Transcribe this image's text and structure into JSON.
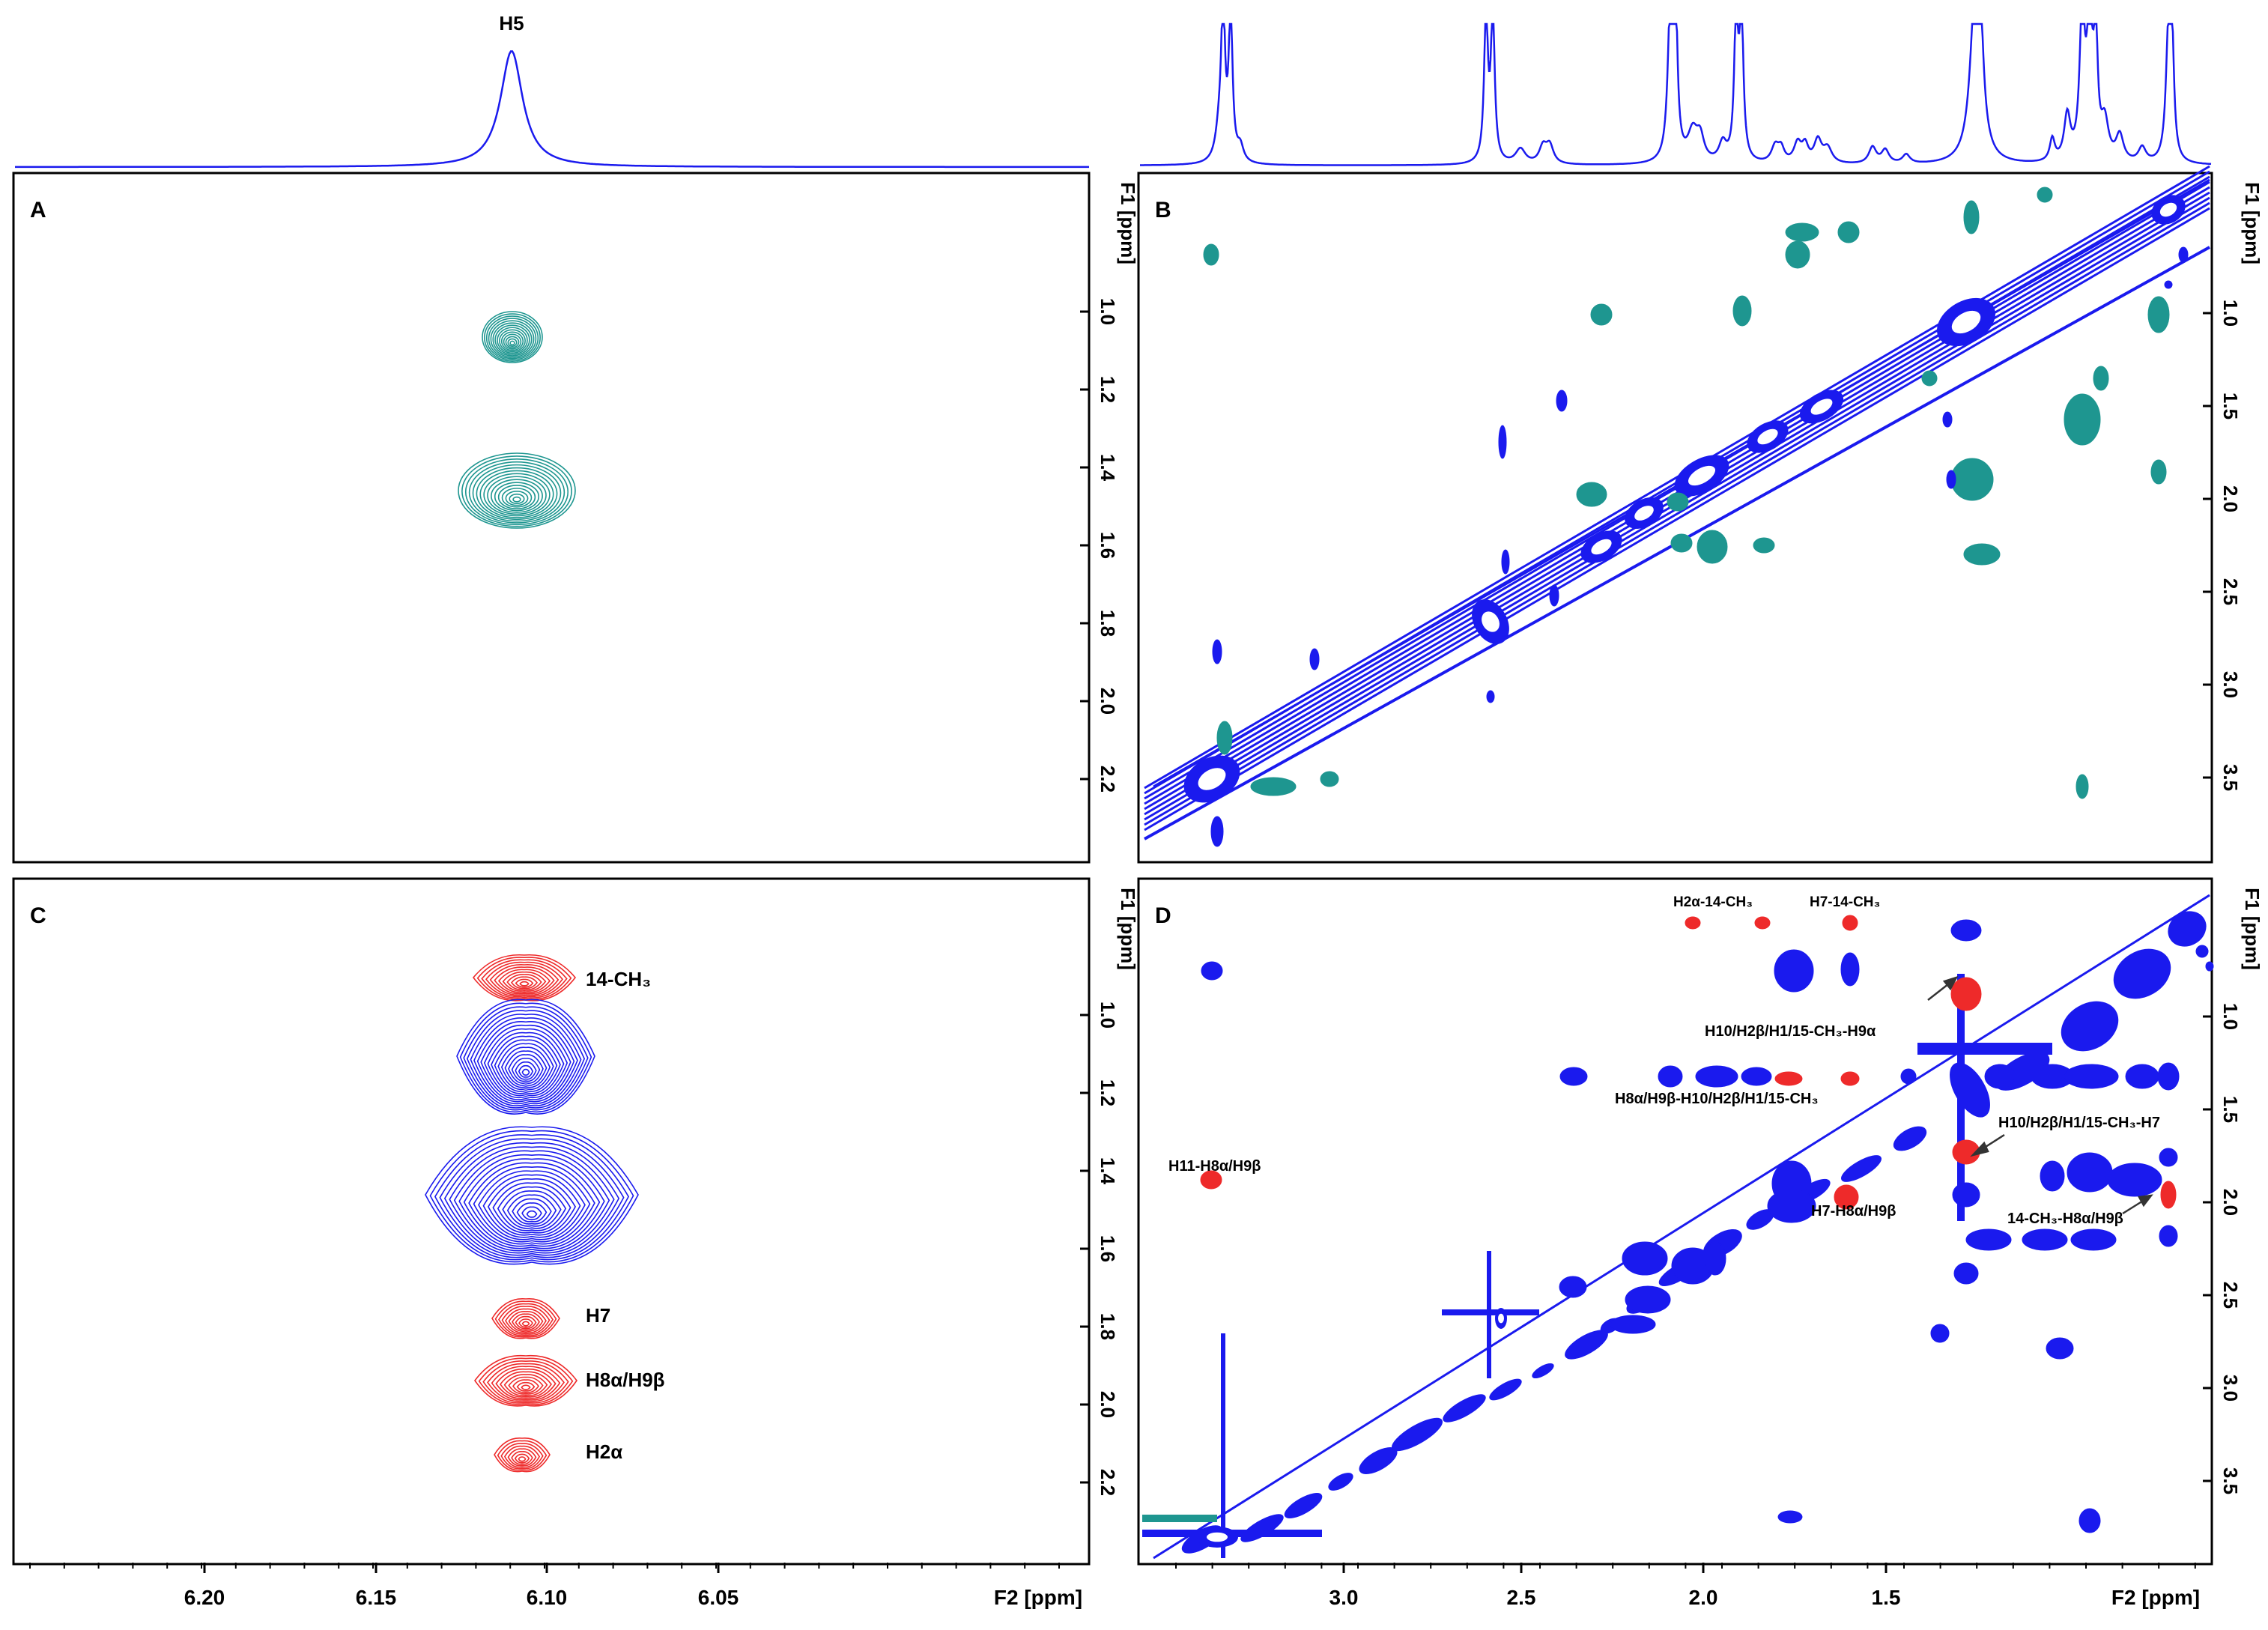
{
  "colors": {
    "noesy": "#1a1aee",
    "teal": "#1e9690",
    "red": "#ee2a2a",
    "frame": "#000000"
  },
  "chart_data": {
    "type": "nmr-2d-contour",
    "top_spectrum": {
      "left_peak_label": "H5"
    },
    "x_axis_title": "F2 [ppm]",
    "y_axis_title": "F1 [ppm]",
    "left_panels": {
      "x_ticks": [
        "6.20",
        "6.15",
        "6.10",
        "6.05"
      ],
      "y_ticks": [
        "1.0",
        "1.2",
        "1.4",
        "1.6",
        "1.8",
        "2.0",
        "2.2"
      ]
    },
    "right_panels": {
      "x_ticks": [
        "3.0",
        "2.5",
        "2.0",
        "1.5"
      ],
      "y_ticks": [
        "1.0",
        "1.5",
        "2.0",
        "2.5",
        "3.0",
        "3.5"
      ]
    },
    "panels": {
      "A": {
        "label": "A"
      },
      "B": {
        "label": "B"
      },
      "C": {
        "label": "C",
        "annotations": [
          "14-CH₃",
          "H7",
          "H8α/H9β",
          "H2α"
        ]
      },
      "D": {
        "label": "D",
        "annotations": [
          "H2α-14-CH₃",
          "H7-14-CH₃",
          "H10/H2β/H1/15-CH₃-H9α",
          "H8α/H9β-H10/H2β/H1/15-CH₃",
          "H10/H2β/H1/15-CH₃-H7",
          "H11-H8α/H9β",
          "H7-H8α/H9β",
          "14-CH₃-H8α/H9β"
        ]
      }
    }
  }
}
